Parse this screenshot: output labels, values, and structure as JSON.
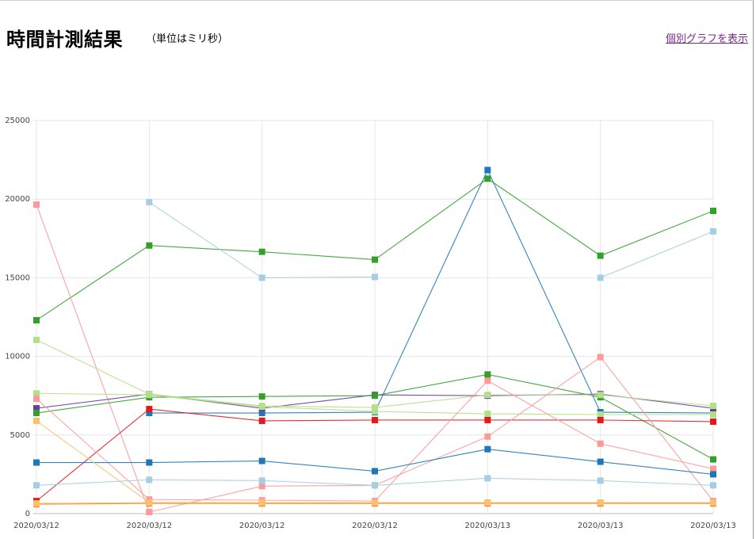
{
  "page": {
    "title": "時間計測結果",
    "subtitle": "（単位はミリ秒）",
    "toggle_link": "個別グラフを表示"
  },
  "chart_data": {
    "type": "line",
    "categories": [
      "2020/03/12",
      "2020/03/12",
      "2020/03/12",
      "2020/03/12",
      "2020/03/13",
      "2020/03/13",
      "2020/03/13"
    ],
    "ylim": [
      0,
      25000
    ],
    "yticks": [
      0,
      5000,
      10000,
      15000,
      20000,
      25000
    ],
    "grid": true,
    "marker": "square",
    "series": [
      {
        "color": "#33a02c",
        "values": [
          12300,
          17050,
          16650,
          16150,
          21300,
          16400,
          19250
        ]
      },
      {
        "color": "#a6cee3",
        "values": [
          null,
          19800,
          15000,
          15050,
          null,
          15000,
          17950
        ]
      },
      {
        "color": "#1f78b4",
        "values": [
          null,
          6400,
          6400,
          6450,
          21850,
          6450,
          6400
        ]
      },
      {
        "color": "#fb9a99",
        "values": [
          19650,
          100,
          null,
          null,
          null,
          null,
          null
        ]
      },
      {
        "color": "#6a3d9a",
        "values": [
          6700,
          7600,
          6700,
          7550,
          7500,
          7600,
          6700
        ]
      },
      {
        "color": "#33a02c",
        "values": [
          6400,
          7400,
          7450,
          7500,
          8850,
          7400,
          3450
        ]
      },
      {
        "color": "#b2df8a",
        "values": [
          11050,
          7600,
          6850,
          6750,
          7550,
          7550,
          6850
        ]
      },
      {
        "color": "#b2df8a",
        "values": [
          7650,
          7550,
          6800,
          6500,
          6350,
          6300,
          6300
        ]
      },
      {
        "color": "#e31a1c",
        "values": [
          800,
          6650,
          5900,
          5950,
          5950,
          5950,
          5850
        ]
      },
      {
        "color": "#fb9a99",
        "values": [
          7300,
          900,
          850,
          800,
          8450,
          4450,
          2850
        ]
      },
      {
        "color": "#fb9a99",
        "values": [
          null,
          100,
          1750,
          1800,
          4900,
          9950,
          800
        ]
      },
      {
        "color": "#1f78b4",
        "values": [
          3250,
          3250,
          3350,
          2700,
          4100,
          3300,
          2500
        ]
      },
      {
        "color": "#a6cee3",
        "values": [
          1800,
          2150,
          2100,
          1800,
          2250,
          2100,
          1800
        ]
      },
      {
        "color": "#fdbf6f",
        "values": [
          5900,
          700,
          650,
          650,
          700,
          700,
          650
        ]
      },
      {
        "color": "#ff7f00",
        "values": [
          600,
          650,
          650,
          650,
          650,
          650,
          650
        ]
      },
      {
        "color": "#fdbf6f",
        "values": [
          650,
          700,
          700,
          700,
          700,
          700,
          700
        ]
      }
    ]
  }
}
